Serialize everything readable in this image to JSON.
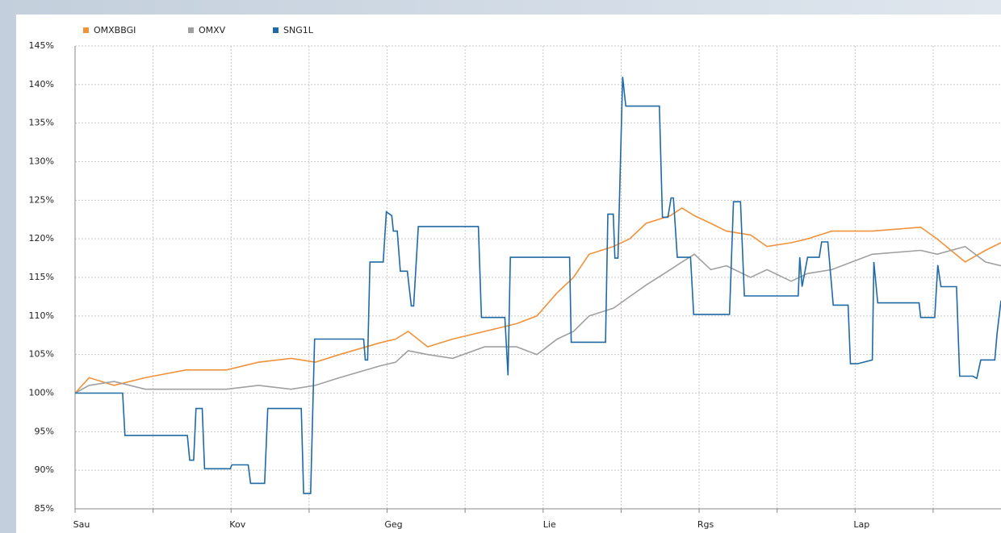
{
  "chart_data": {
    "type": "line",
    "x": [
      0,
      0.18,
      0.5,
      0.9,
      1.42,
      1.94,
      2.35,
      2.77,
      3.08,
      3.39,
      3.9,
      4.11,
      4.27,
      4.52,
      4.84,
      5.25,
      5.66,
      5.92,
      6.18,
      6.39,
      6.59,
      6.9,
      7.11,
      7.32,
      7.63,
      7.78,
      7.94,
      8.15,
      8.35,
      8.66,
      8.87,
      9.18,
      9.39,
      9.7,
      10.22,
      10.84,
      11.05,
      11.41,
      11.67,
      11.87
    ],
    "series": [
      {
        "name": "OMXBBGI",
        "color": "#f0923a",
        "values": [
          100,
          102,
          101,
          102,
          103,
          103,
          104,
          104.5,
          104,
          105,
          106.5,
          107,
          108,
          106,
          107,
          108,
          109,
          110,
          113,
          115,
          118,
          119,
          120,
          122,
          123,
          124,
          123,
          122,
          121,
          120.5,
          119,
          119.5,
          120,
          121,
          121,
          121.5,
          120,
          117,
          118.5,
          119.5
        ]
      },
      {
        "name": "OMXV",
        "color": "#a0a0a0",
        "values": [
          100,
          101,
          101.5,
          100.5,
          100.5,
          100.5,
          101,
          100.5,
          101,
          102,
          103.5,
          104,
          105.5,
          105,
          104.5,
          106,
          106,
          105,
          107,
          108,
          110,
          111,
          112.5,
          114,
          116,
          117,
          118,
          116,
          116.5,
          115,
          116,
          114.5,
          115.5,
          116,
          118,
          118.5,
          118,
          119,
          117,
          116.5
        ]
      },
      {
        "name": "SNG1L",
        "color": "#1f6aa5",
        "x": [
          0,
          0.61,
          0.64,
          1.44,
          1.47,
          1.52,
          1.55,
          1.63,
          1.66,
          1.99,
          2.01,
          2.22,
          2.25,
          2.43,
          2.47,
          2.9,
          2.93,
          3.02,
          3.07,
          3.7,
          3.72,
          3.75,
          3.78,
          3.85,
          3.95,
          3.99,
          4.06,
          4.08,
          4.13,
          4.17,
          4.26,
          4.31,
          4.34,
          4.4,
          5.17,
          5.21,
          5.51,
          5.55,
          5.58,
          6.34,
          6.36,
          6.8,
          6.83,
          6.9,
          6.92,
          6.96,
          7.02,
          7.06,
          7.49,
          7.53,
          7.6,
          7.64,
          7.67,
          7.72,
          7.89,
          7.93,
          8.39,
          8.44,
          8.53,
          8.58,
          9.27,
          9.29,
          9.32,
          9.39,
          9.54,
          9.57,
          9.65,
          9.72,
          9.91,
          9.94,
          10.03,
          10.22,
          10.24,
          10.29,
          10.82,
          10.84,
          11.02,
          11.06,
          11.1,
          11.3,
          11.34,
          11.51,
          11.56,
          11.61,
          11.79,
          11.82,
          11.87
        ],
        "values": [
          100,
          100,
          94.5,
          94.5,
          91.3,
          91.3,
          98,
          98,
          90.2,
          90.2,
          90.7,
          90.7,
          88.3,
          88.3,
          98,
          98,
          87,
          87,
          107,
          107,
          104.3,
          104.3,
          117,
          117,
          117,
          123.5,
          123,
          121,
          121,
          115.8,
          115.8,
          111.3,
          111.3,
          121.6,
          121.6,
          109.8,
          109.8,
          102.3,
          117.6,
          117.6,
          106.6,
          106.6,
          123.2,
          123.2,
          117.5,
          117.5,
          141,
          137.2,
          137.2,
          122.8,
          122.8,
          125.3,
          125.3,
          117.6,
          117.6,
          110.2,
          110.2,
          124.8,
          124.8,
          112.6,
          112.6,
          117.6,
          113.8,
          117.6,
          117.6,
          119.6,
          119.6,
          111.4,
          111.4,
          103.8,
          103.8,
          104.3,
          117,
          111.7,
          111.7,
          109.8,
          109.8,
          116.6,
          113.8,
          113.8,
          102.2,
          102.2,
          101.9,
          104.3,
          104.3,
          107.8,
          112
        ]
      }
    ],
    "xlim": [
      0,
      11.87
    ],
    "xticks": [
      {
        "value": 0,
        "label": "Sau"
      },
      {
        "value": 1,
        "label": null
      },
      {
        "value": 2,
        "label": "Kov"
      },
      {
        "value": 3,
        "label": null
      },
      {
        "value": 4,
        "label": "Geg"
      },
      {
        "value": 5,
        "label": null
      },
      {
        "value": 6,
        "label": "Lie"
      },
      {
        "value": 7,
        "label": null
      },
      {
        "value": 8,
        "label": "Rgs"
      },
      {
        "value": 9,
        "label": null
      },
      {
        "value": 10,
        "label": "Lap"
      },
      {
        "value": 11,
        "label": null
      }
    ],
    "ylim": [
      85,
      145
    ],
    "yticks": [
      {
        "value": 85,
        "label": "85%"
      },
      {
        "value": 90,
        "label": "90%"
      },
      {
        "value": 95,
        "label": "95%"
      },
      {
        "value": 100,
        "label": "100%"
      },
      {
        "value": 105,
        "label": "105%"
      },
      {
        "value": 110,
        "label": "110%"
      },
      {
        "value": 115,
        "label": "115%"
      },
      {
        "value": 120,
        "label": "120%"
      },
      {
        "value": 125,
        "label": "125%"
      },
      {
        "value": 130,
        "label": "130%"
      },
      {
        "value": 135,
        "label": "135%"
      },
      {
        "value": 140,
        "label": "140%"
      },
      {
        "value": 145,
        "label": "145%"
      }
    ],
    "grid": true,
    "legend": "top-left"
  }
}
